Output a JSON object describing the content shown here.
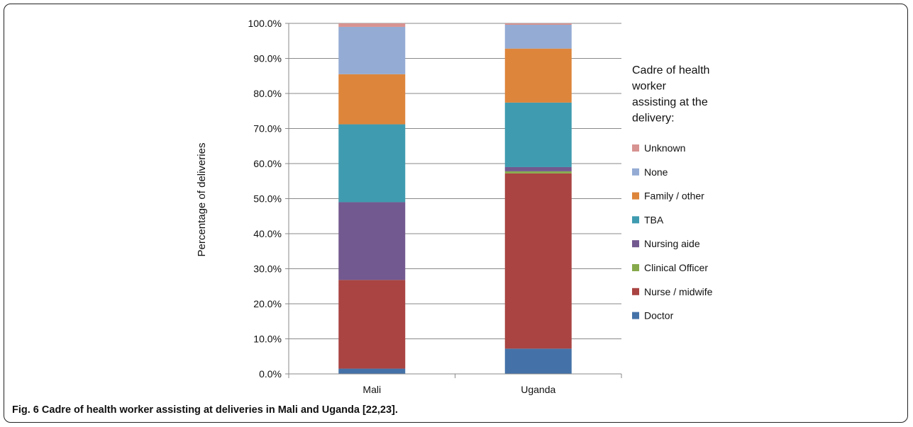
{
  "figure": {
    "caption_label": "Fig. 6",
    "caption_text": "Cadre of health worker assisting at deliveries in Mali and Uganda [22,23]."
  },
  "chart_data": {
    "type": "bar",
    "stacked": true,
    "categories": [
      "Mali",
      "Uganda"
    ],
    "ylabel": "Percentage of deliveries",
    "ylim": [
      0,
      100
    ],
    "yticks": [
      "0.0%",
      "10.0%",
      "20.0%",
      "30.0%",
      "40.0%",
      "50.0%",
      "60.0%",
      "70.0%",
      "80.0%",
      "90.0%",
      "100.0%"
    ],
    "grid": true,
    "legend": {
      "title_lines": [
        "Cadre of health",
        "worker",
        "assisting at the",
        "delivery:"
      ],
      "placement": "right"
    },
    "series": [
      {
        "name": "Doctor",
        "color": "#4472a8",
        "values": [
          1.5,
          7.2
        ]
      },
      {
        "name": "Nurse / midwife",
        "color": "#a94442",
        "values": [
          25.3,
          50.0
        ]
      },
      {
        "name": "Clinical Officer",
        "color": "#86a94c",
        "values": [
          0.0,
          0.6
        ]
      },
      {
        "name": "Nursing aide",
        "color": "#72598f",
        "values": [
          22.2,
          1.2
        ]
      },
      {
        "name": "TBA",
        "color": "#3f9bb0",
        "values": [
          22.2,
          18.4
        ]
      },
      {
        "name": "Family / other",
        "color": "#dd853b",
        "values": [
          14.3,
          15.4
        ]
      },
      {
        "name": "None",
        "color": "#94abd4",
        "values": [
          13.5,
          6.8
        ]
      },
      {
        "name": "Unknown",
        "color": "#d79391",
        "values": [
          1.0,
          0.4
        ]
      }
    ]
  }
}
